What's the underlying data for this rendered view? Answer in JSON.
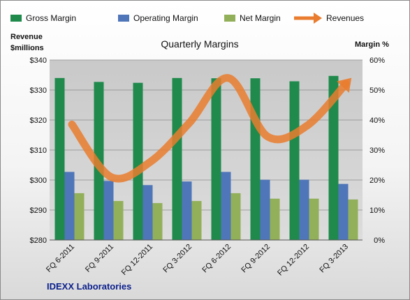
{
  "chart_data": {
    "type": "bar",
    "title": "Quarterly Margins",
    "company": "IDEXX Laboratories",
    "left_axis": {
      "label_line1": "Revenue",
      "label_line2": "$millions",
      "ylim": [
        280,
        340
      ],
      "ticks": [
        "$280",
        "$290",
        "$300",
        "$310",
        "$320",
        "$330",
        "$340"
      ]
    },
    "right_axis": {
      "label": "Margin %",
      "ylim": [
        0,
        60
      ],
      "ticks": [
        "0%",
        "10%",
        "20%",
        "30%",
        "40%",
        "50%",
        "60%"
      ]
    },
    "categories": [
      "FQ 6-2011",
      "FQ 9-2011",
      "FQ 12-2011",
      "FQ 3-2012",
      "FQ 6-2012",
      "FQ 9-2012",
      "FQ 12-2012",
      "FQ 3-2013"
    ],
    "series": [
      {
        "name": "Gross Margin",
        "axis": "right",
        "kind": "bar",
        "color": "#1f8a4c",
        "values": [
          54.0,
          52.7,
          52.4,
          54.0,
          53.9,
          53.9,
          52.9,
          54.7
        ]
      },
      {
        "name": "Operating Margin",
        "axis": "right",
        "kind": "bar",
        "color": "#4f76b8",
        "values": [
          22.7,
          19.7,
          18.3,
          19.5,
          22.7,
          20.1,
          20.1,
          18.7
        ]
      },
      {
        "name": "Net Margin",
        "axis": "right",
        "kind": "bar",
        "color": "#92b05a",
        "values": [
          15.6,
          13.0,
          12.3,
          13.0,
          15.6,
          13.8,
          13.8,
          13.5
        ]
      },
      {
        "name": "Revenues",
        "axis": "left",
        "kind": "line",
        "color": "#e97c2e",
        "values": [
          318.5,
          301.0,
          306.0,
          319.0,
          334.0,
          314.5,
          318.0,
          332.0
        ]
      }
    ],
    "legend_position": "top",
    "grid": true
  }
}
